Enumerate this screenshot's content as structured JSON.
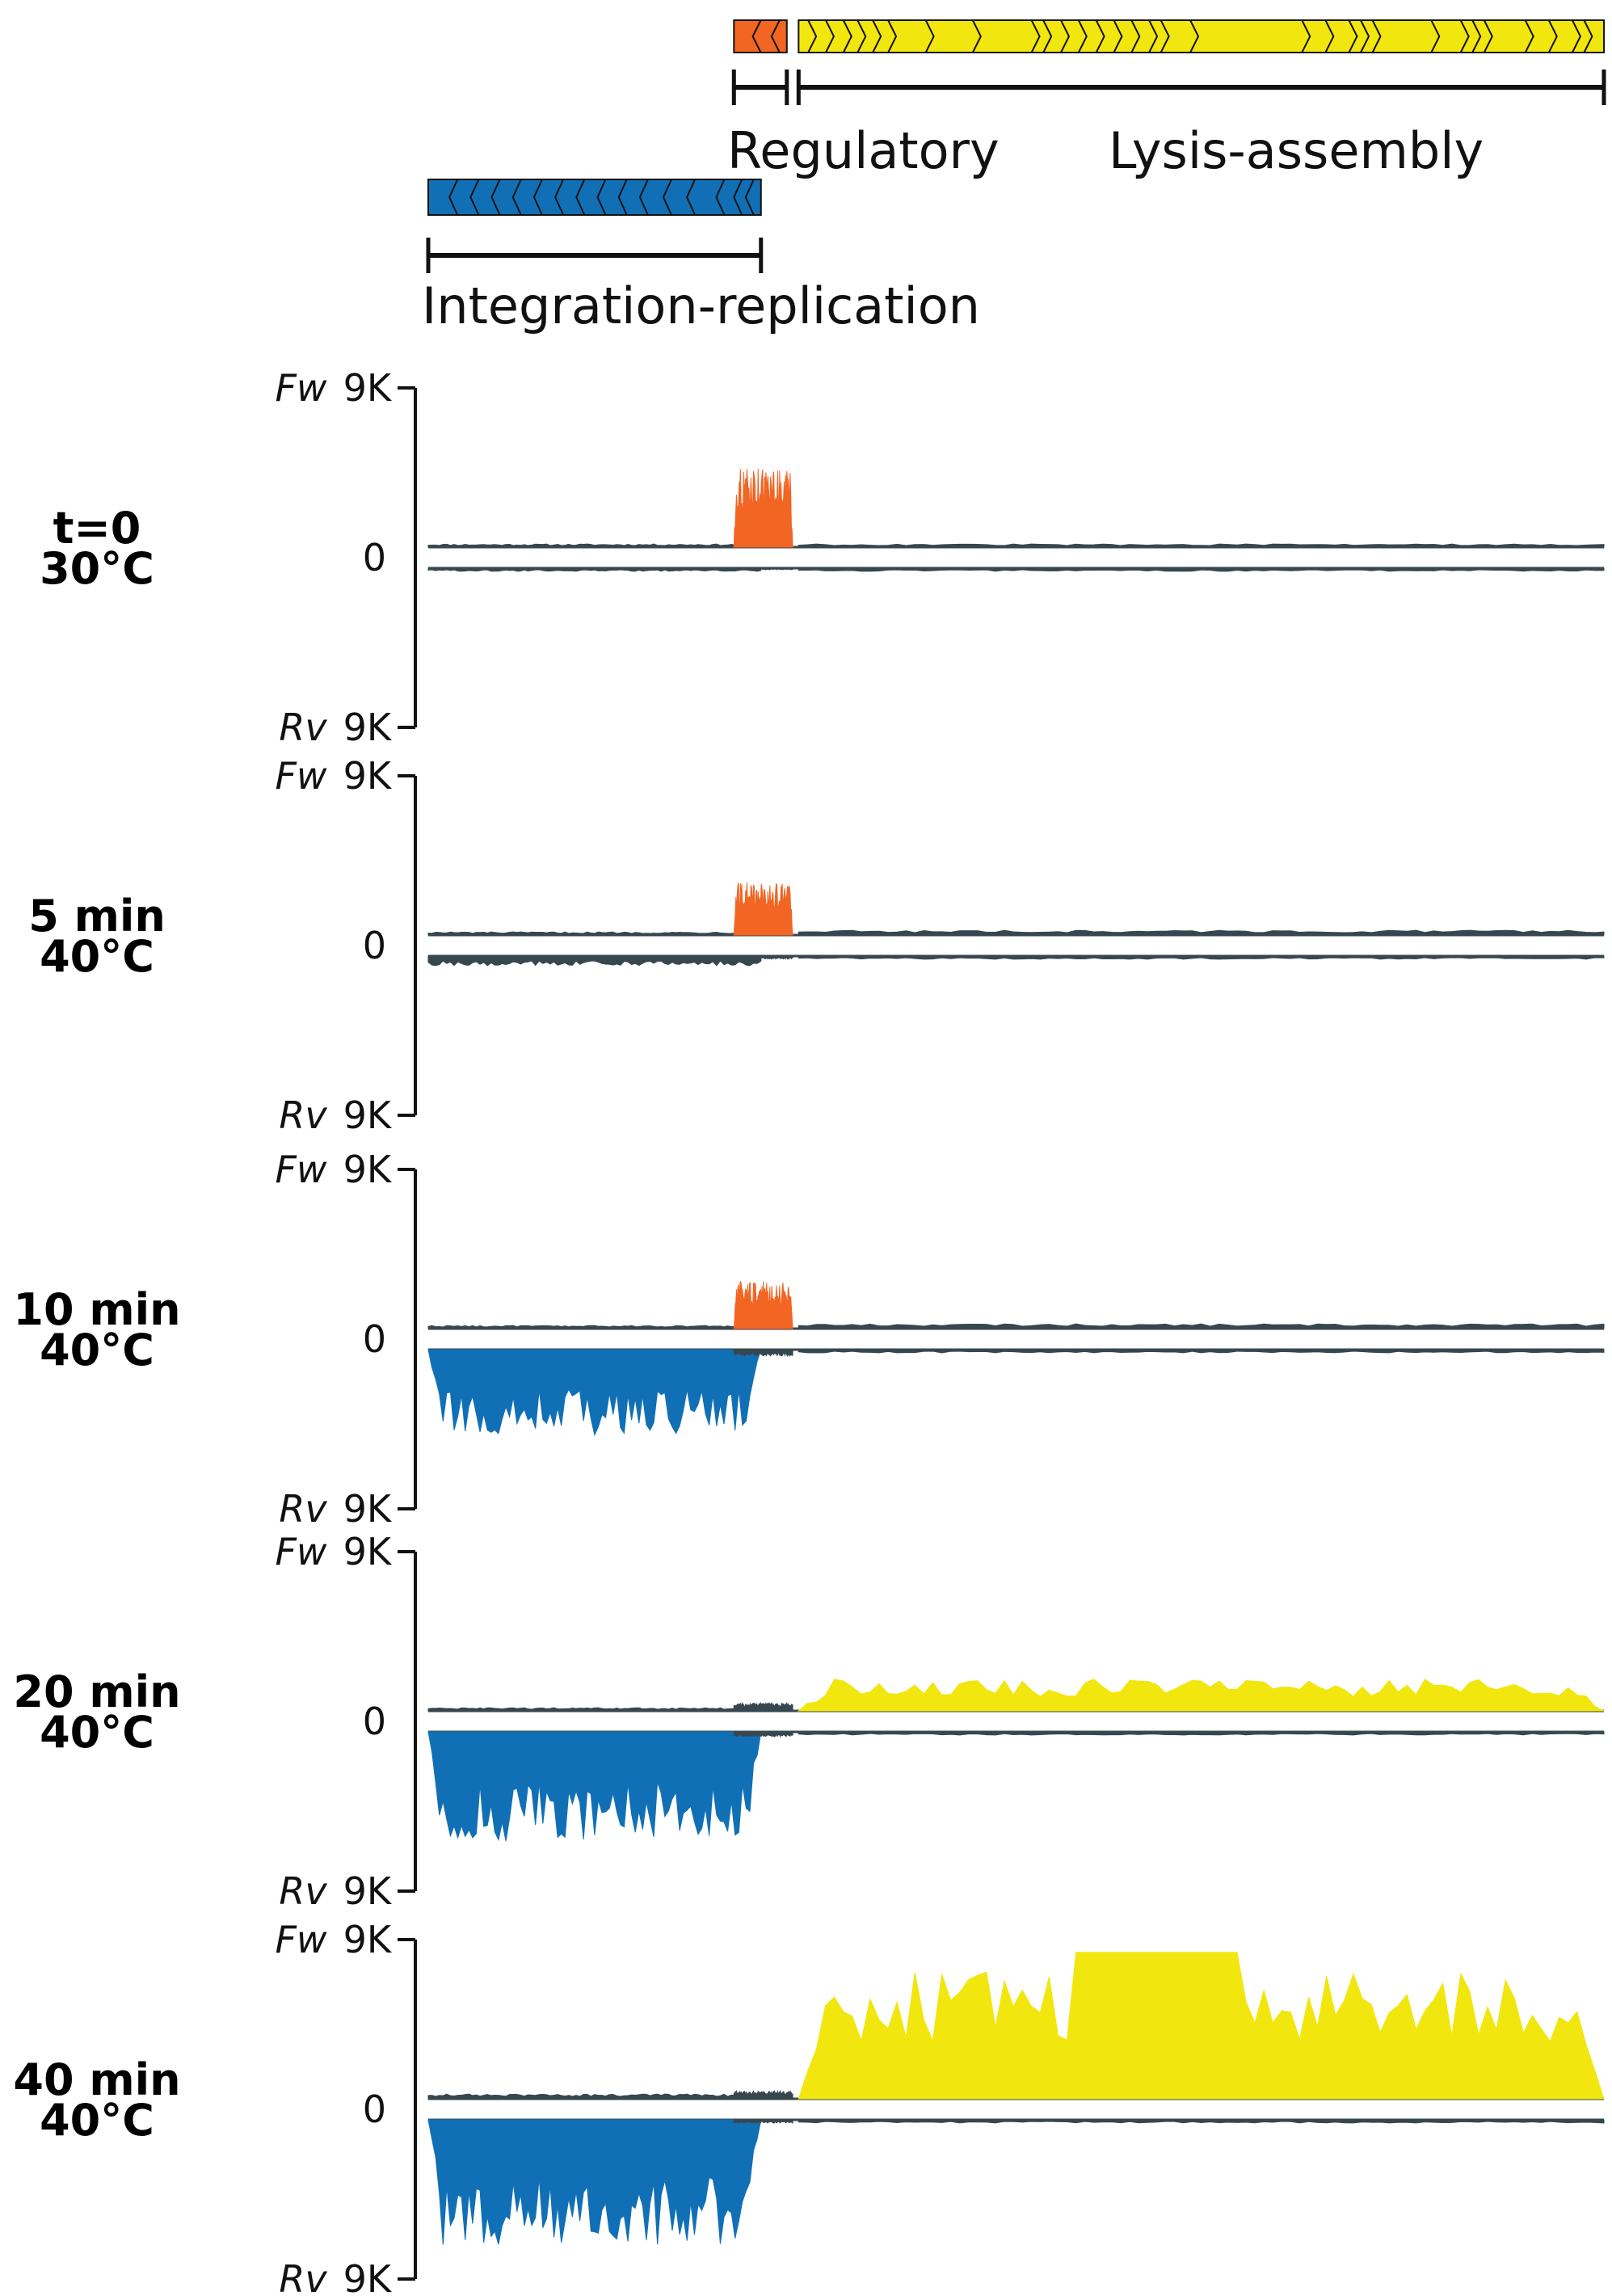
{
  "chart_data": {
    "type": "area",
    "colors": {
      "integration_replication": "#1170b5",
      "regulatory": "#f26522",
      "lysis_assembly": "#f2e60f",
      "baseline": "#37474f"
    },
    "regions": [
      {
        "key": "regulatory",
        "label": "Regulatory",
        "start": 0.26,
        "end": 0.305
      },
      {
        "key": "lysis_assembly",
        "label": "Lysis-assembly",
        "start": 0.315,
        "end": 1.0
      },
      {
        "key": "integration_replication",
        "label": "Integration-replication",
        "start": 0.0,
        "end": 0.283
      }
    ],
    "gene_arrows": {
      "integration_replication": [
        0.0,
        0.018,
        0.036,
        0.054,
        0.072,
        0.09,
        0.108,
        0.126,
        0.144,
        0.162,
        0.18,
        0.2,
        0.22,
        0.245,
        0.26,
        0.27,
        0.283
      ],
      "regulatory": [
        0.26,
        0.276,
        0.292,
        0.305
      ],
      "lysis_assembly": [
        0.315,
        0.33,
        0.345,
        0.36,
        0.372,
        0.385,
        0.398,
        0.43,
        0.47,
        0.52,
        0.53,
        0.545,
        0.56,
        0.575,
        0.59,
        0.605,
        0.62,
        0.63,
        0.655,
        0.75,
        0.77,
        0.79,
        0.8,
        0.81,
        0.86,
        0.885,
        0.895,
        0.905,
        0.94,
        0.96,
        0.98,
        0.99,
        1.0
      ]
    },
    "y_axis": {
      "top_strand": "Fw",
      "bottom_strand": "Rv",
      "top_tick": "9K",
      "middle_tick": "0",
      "bottom_tick": "9K",
      "ylim": [
        -9000,
        9000
      ]
    },
    "panels": [
      {
        "condition": [
          "t=0",
          "30°C"
        ],
        "forward": {
          "integration_replication": 0.02,
          "regulatory": 0.5,
          "lysis_assembly": 0.02
        },
        "reverse": {
          "integration_replication": 0.02,
          "regulatory": 0.01,
          "lysis_assembly": 0.02
        }
      },
      {
        "condition": [
          "5 min",
          "40°C"
        ],
        "forward": {
          "integration_replication": 0.02,
          "regulatory": 0.33,
          "lysis_assembly": 0.03
        },
        "reverse": {
          "integration_replication": 0.06,
          "regulatory": 0.02,
          "lysis_assembly": 0.02
        }
      },
      {
        "condition": [
          "10 min",
          "40°C"
        ],
        "forward": {
          "integration_replication": 0.02,
          "regulatory": 0.3,
          "lysis_assembly": 0.03
        },
        "reverse": {
          "integration_replication": 0.55,
          "regulatory": 0.04,
          "lysis_assembly": 0.02
        }
      },
      {
        "condition": [
          "20 min",
          "40°C"
        ],
        "forward": {
          "integration_replication": 0.02,
          "regulatory": 0.05,
          "lysis_assembly": 0.2
        },
        "reverse": {
          "integration_replication": 0.7,
          "regulatory": 0.03,
          "lysis_assembly": 0.02
        }
      },
      {
        "condition": [
          "40 min",
          "40°C"
        ],
        "forward": {
          "integration_replication": 0.03,
          "regulatory": 0.05,
          "lysis_assembly": 0.8
        },
        "reverse": {
          "integration_replication": 0.8,
          "regulatory": 0.02,
          "lysis_assembly": 0.02
        }
      }
    ]
  }
}
